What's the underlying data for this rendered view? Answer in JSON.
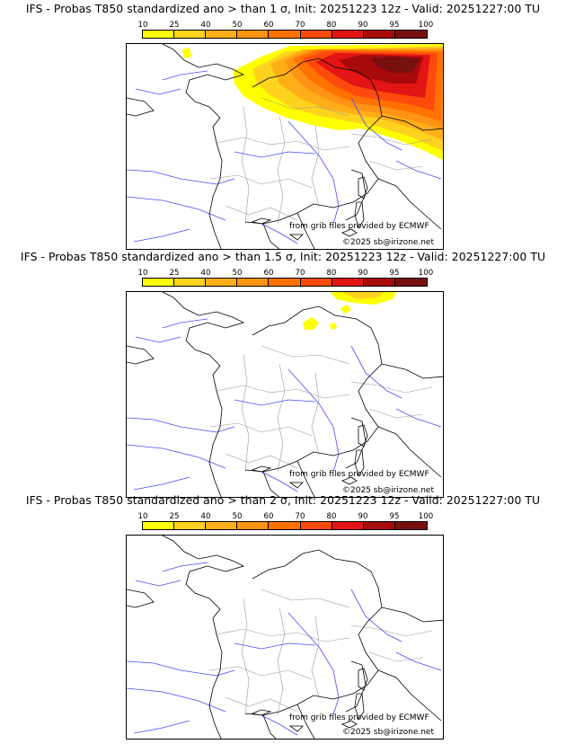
{
  "colorbar": {
    "ticks": [
      "10",
      "25",
      "40",
      "50",
      "60",
      "70",
      "80",
      "90",
      "95",
      "100"
    ],
    "colors": [
      "#ffff00",
      "#ffd21e",
      "#ffae18",
      "#ff9314",
      "#ff7200",
      "#ff4a0e",
      "#e21414",
      "#a60a0a",
      "#781010"
    ]
  },
  "panels": [
    {
      "title": "IFS - Probas T850  standardized ano > than 1 σ, Init: 20251223 12z - Valid: 20251227:00 TU",
      "level": "1",
      "credit_source": "from grib files provided by ECMWF",
      "credit_copyright": "©2025 sb@irizone.net"
    },
    {
      "title": "IFS - Probas T850  standardized ano > than 1.5 σ, Init: 20251223 12z - Valid: 20251227:00 TU",
      "level": "1.5",
      "credit_source": "from grib files provided by ECMWF",
      "credit_copyright": "©2025 sb@irizone.net"
    },
    {
      "title": "IFS - Probas T850  standardized ano > than 2 σ, Init: 20251223 12z - Valid: 20251227:00 TU",
      "level": "2",
      "credit_source": "from grib files provided by ECMWF",
      "credit_copyright": "©2025 sb@irizone.net"
    }
  ]
}
